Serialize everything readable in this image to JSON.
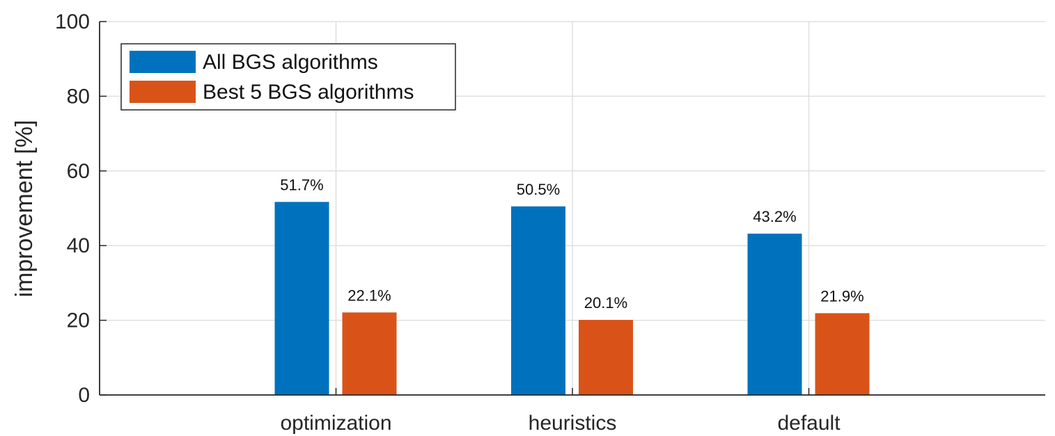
{
  "chart_data": {
    "type": "bar",
    "categories": [
      "optimization",
      "heuristics",
      "default"
    ],
    "series": [
      {
        "name": "All BGS algorithms",
        "values": [
          51.7,
          50.5,
          43.2
        ],
        "labels": [
          "51.7%",
          "50.5%",
          "43.2%"
        ],
        "color": "#0072BD"
      },
      {
        "name": "Best 5 BGS algorithms",
        "values": [
          22.1,
          20.1,
          21.9
        ],
        "labels": [
          "22.1%",
          "20.1%",
          "21.9%"
        ],
        "color": "#D95319"
      }
    ],
    "xlabel": "",
    "ylabel": "improvement [%]",
    "ylim": [
      0,
      100
    ],
    "yticks": [
      0,
      20,
      40,
      60,
      80,
      100
    ],
    "grid": true,
    "legend_position": "top-left"
  }
}
